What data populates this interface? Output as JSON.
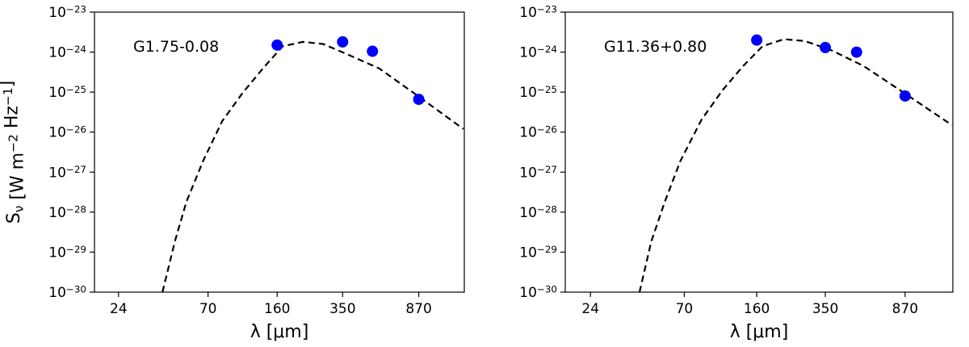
{
  "chart_data": [
    {
      "type": "scatter",
      "xscale": "log",
      "yscale": "log",
      "annotation": "G1.75-0.08",
      "xlabel": "λ [μm]",
      "ylabel": "S_{ν} [W m^{−2} Hz^{−1}]",
      "xlim": [
        18,
        1500
      ],
      "ylim": [
        1e-30,
        1e-23
      ],
      "xticks": [
        24,
        70,
        160,
        350,
        870
      ],
      "yticks": [
        {
          "value": 1e-30,
          "label": "10^{−30}"
        },
        {
          "value": 1e-29,
          "label": "10^{−29}"
        },
        {
          "value": 1e-28,
          "label": "10^{−28}"
        },
        {
          "value": 1e-27,
          "label": "10^{−27}"
        },
        {
          "value": 1e-26,
          "label": "10^{−26}"
        },
        {
          "value": 1e-25,
          "label": "10^{−25}"
        },
        {
          "value": 1e-24,
          "label": "10^{−24}"
        },
        {
          "value": 1e-23,
          "label": "10^{−23}"
        }
      ],
      "series": [
        {
          "type": "scatter",
          "color": "#0000ff",
          "x": [
            160,
            350,
            500,
            870
          ],
          "values": [
            1.5e-24,
            1.8e-24,
            1.05e-24,
            6.6e-26
          ]
        },
        {
          "type": "line",
          "color": "#000000",
          "dash": true,
          "x": [
            40.6,
            47,
            54,
            66,
            83,
            106,
            135,
            171,
            218,
            277,
            377,
            542,
            875,
            1483
          ],
          "values": [
            1e-30,
            1.8e-29,
            1.8e-28,
            1.9e-27,
            1.9e-26,
            9.6e-26,
            3.9e-25,
            1.4e-24,
            1.8e-24,
            1.6e-24,
            8.5e-25,
            3.9e-25,
            7.6e-26,
            1.2e-26
          ]
        }
      ]
    },
    {
      "type": "scatter",
      "xscale": "log",
      "yscale": "log",
      "annotation": "G11.36+0.80",
      "xlabel": "λ [μm]",
      "xlim": [
        18,
        1500
      ],
      "ylim": [
        1e-30,
        1e-23
      ],
      "xticks": [
        24,
        70,
        160,
        350,
        870
      ],
      "yticks": [
        {
          "value": 1e-30,
          "label": "10^{−30}"
        },
        {
          "value": 1e-29,
          "label": "10^{−29}"
        },
        {
          "value": 1e-28,
          "label": "10^{−28}"
        },
        {
          "value": 1e-27,
          "label": "10^{−27}"
        },
        {
          "value": 1e-26,
          "label": "10^{−26}"
        },
        {
          "value": 1e-25,
          "label": "10^{−25}"
        },
        {
          "value": 1e-24,
          "label": "10^{−24}"
        },
        {
          "value": 1e-23,
          "label": "10^{−23}"
        }
      ],
      "series": [
        {
          "type": "scatter",
          "color": "#0000ff",
          "x": [
            160,
            350,
            500,
            870
          ],
          "values": [
            2e-24,
            1.3e-24,
            1e-24,
            8e-26
          ]
        },
        {
          "type": "line",
          "color": "#000000",
          "dash": true,
          "x": [
            42,
            48,
            56,
            67,
            85,
            108,
            137,
            171,
            218,
            277,
            377,
            542,
            875,
            1483
          ],
          "values": [
            1e-30,
            1.8e-29,
            1.8e-28,
            1.9e-27,
            2e-26,
            1.1e-25,
            4.5e-25,
            1.4e-24,
            2.1e-24,
            1.9e-24,
            1.1e-24,
            4.5e-25,
            9e-26,
            1.5e-26
          ]
        }
      ]
    }
  ]
}
